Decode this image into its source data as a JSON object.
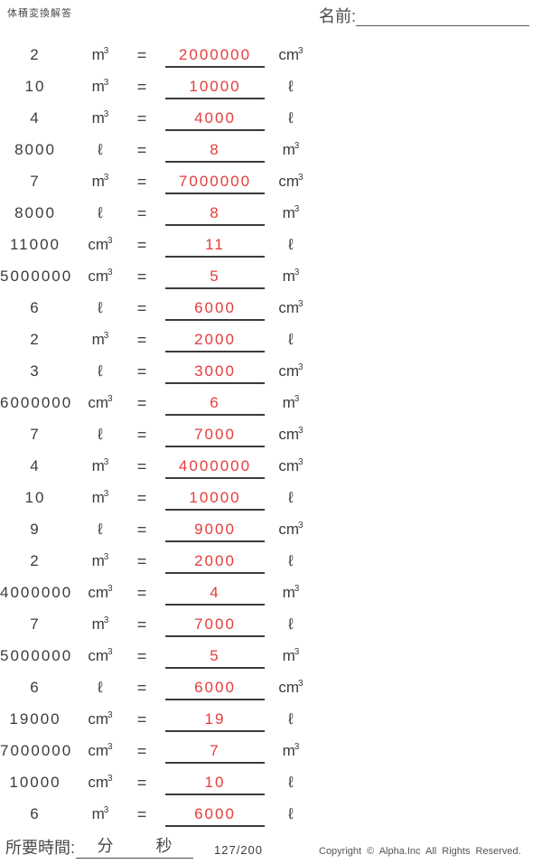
{
  "header": {
    "title": "体積変換解答",
    "name_label": "名前:"
  },
  "equals": "=",
  "problems": [
    {
      "value": "2",
      "from_unit": "m³",
      "answer": "2000000",
      "to_unit": "cm³"
    },
    {
      "value": "10",
      "from_unit": "m³",
      "answer": "10000",
      "to_unit": "ℓ"
    },
    {
      "value": "4",
      "from_unit": "m³",
      "answer": "4000",
      "to_unit": "ℓ"
    },
    {
      "value": "8000",
      "from_unit": "ℓ",
      "answer": "8",
      "to_unit": "m³"
    },
    {
      "value": "7",
      "from_unit": "m³",
      "answer": "7000000",
      "to_unit": "cm³"
    },
    {
      "value": "8000",
      "from_unit": "ℓ",
      "answer": "8",
      "to_unit": "m³"
    },
    {
      "value": "11000",
      "from_unit": "cm³",
      "answer": "11",
      "to_unit": "ℓ"
    },
    {
      "value": "5000000",
      "from_unit": "cm³",
      "answer": "5",
      "to_unit": "m³"
    },
    {
      "value": "6",
      "from_unit": "ℓ",
      "answer": "6000",
      "to_unit": "cm³"
    },
    {
      "value": "2",
      "from_unit": "m³",
      "answer": "2000",
      "to_unit": "ℓ"
    },
    {
      "value": "3",
      "from_unit": "ℓ",
      "answer": "3000",
      "to_unit": "cm³"
    },
    {
      "value": "6000000",
      "from_unit": "cm³",
      "answer": "6",
      "to_unit": "m³"
    },
    {
      "value": "7",
      "from_unit": "ℓ",
      "answer": "7000",
      "to_unit": "cm³"
    },
    {
      "value": "4",
      "from_unit": "m³",
      "answer": "4000000",
      "to_unit": "cm³"
    },
    {
      "value": "10",
      "from_unit": "m³",
      "answer": "10000",
      "to_unit": "ℓ"
    },
    {
      "value": "9",
      "from_unit": "ℓ",
      "answer": "9000",
      "to_unit": "cm³"
    },
    {
      "value": "2",
      "from_unit": "m³",
      "answer": "2000",
      "to_unit": "ℓ"
    },
    {
      "value": "4000000",
      "from_unit": "cm³",
      "answer": "4",
      "to_unit": "m³"
    },
    {
      "value": "7",
      "from_unit": "m³",
      "answer": "7000",
      "to_unit": "ℓ"
    },
    {
      "value": "5000000",
      "from_unit": "cm³",
      "answer": "5",
      "to_unit": "m³"
    },
    {
      "value": "6",
      "from_unit": "ℓ",
      "answer": "6000",
      "to_unit": "cm³"
    },
    {
      "value": "19000",
      "from_unit": "cm³",
      "answer": "19",
      "to_unit": "ℓ"
    },
    {
      "value": "7000000",
      "from_unit": "cm³",
      "answer": "7",
      "to_unit": "m³"
    },
    {
      "value": "10000",
      "from_unit": "cm³",
      "answer": "10",
      "to_unit": "ℓ"
    },
    {
      "value": "6",
      "from_unit": "m³",
      "answer": "6000",
      "to_unit": "ℓ"
    }
  ],
  "footer": {
    "time_label": "所要時間:",
    "minutes_label": "分",
    "seconds_label": "秒",
    "page_number": "127/200",
    "copyright": "Copyright © Alpha.Inc All Rights Reserved."
  },
  "colors": {
    "answer_red": "#e63c3c",
    "text": "#3b3b3b",
    "line": "#3b3b3b"
  }
}
